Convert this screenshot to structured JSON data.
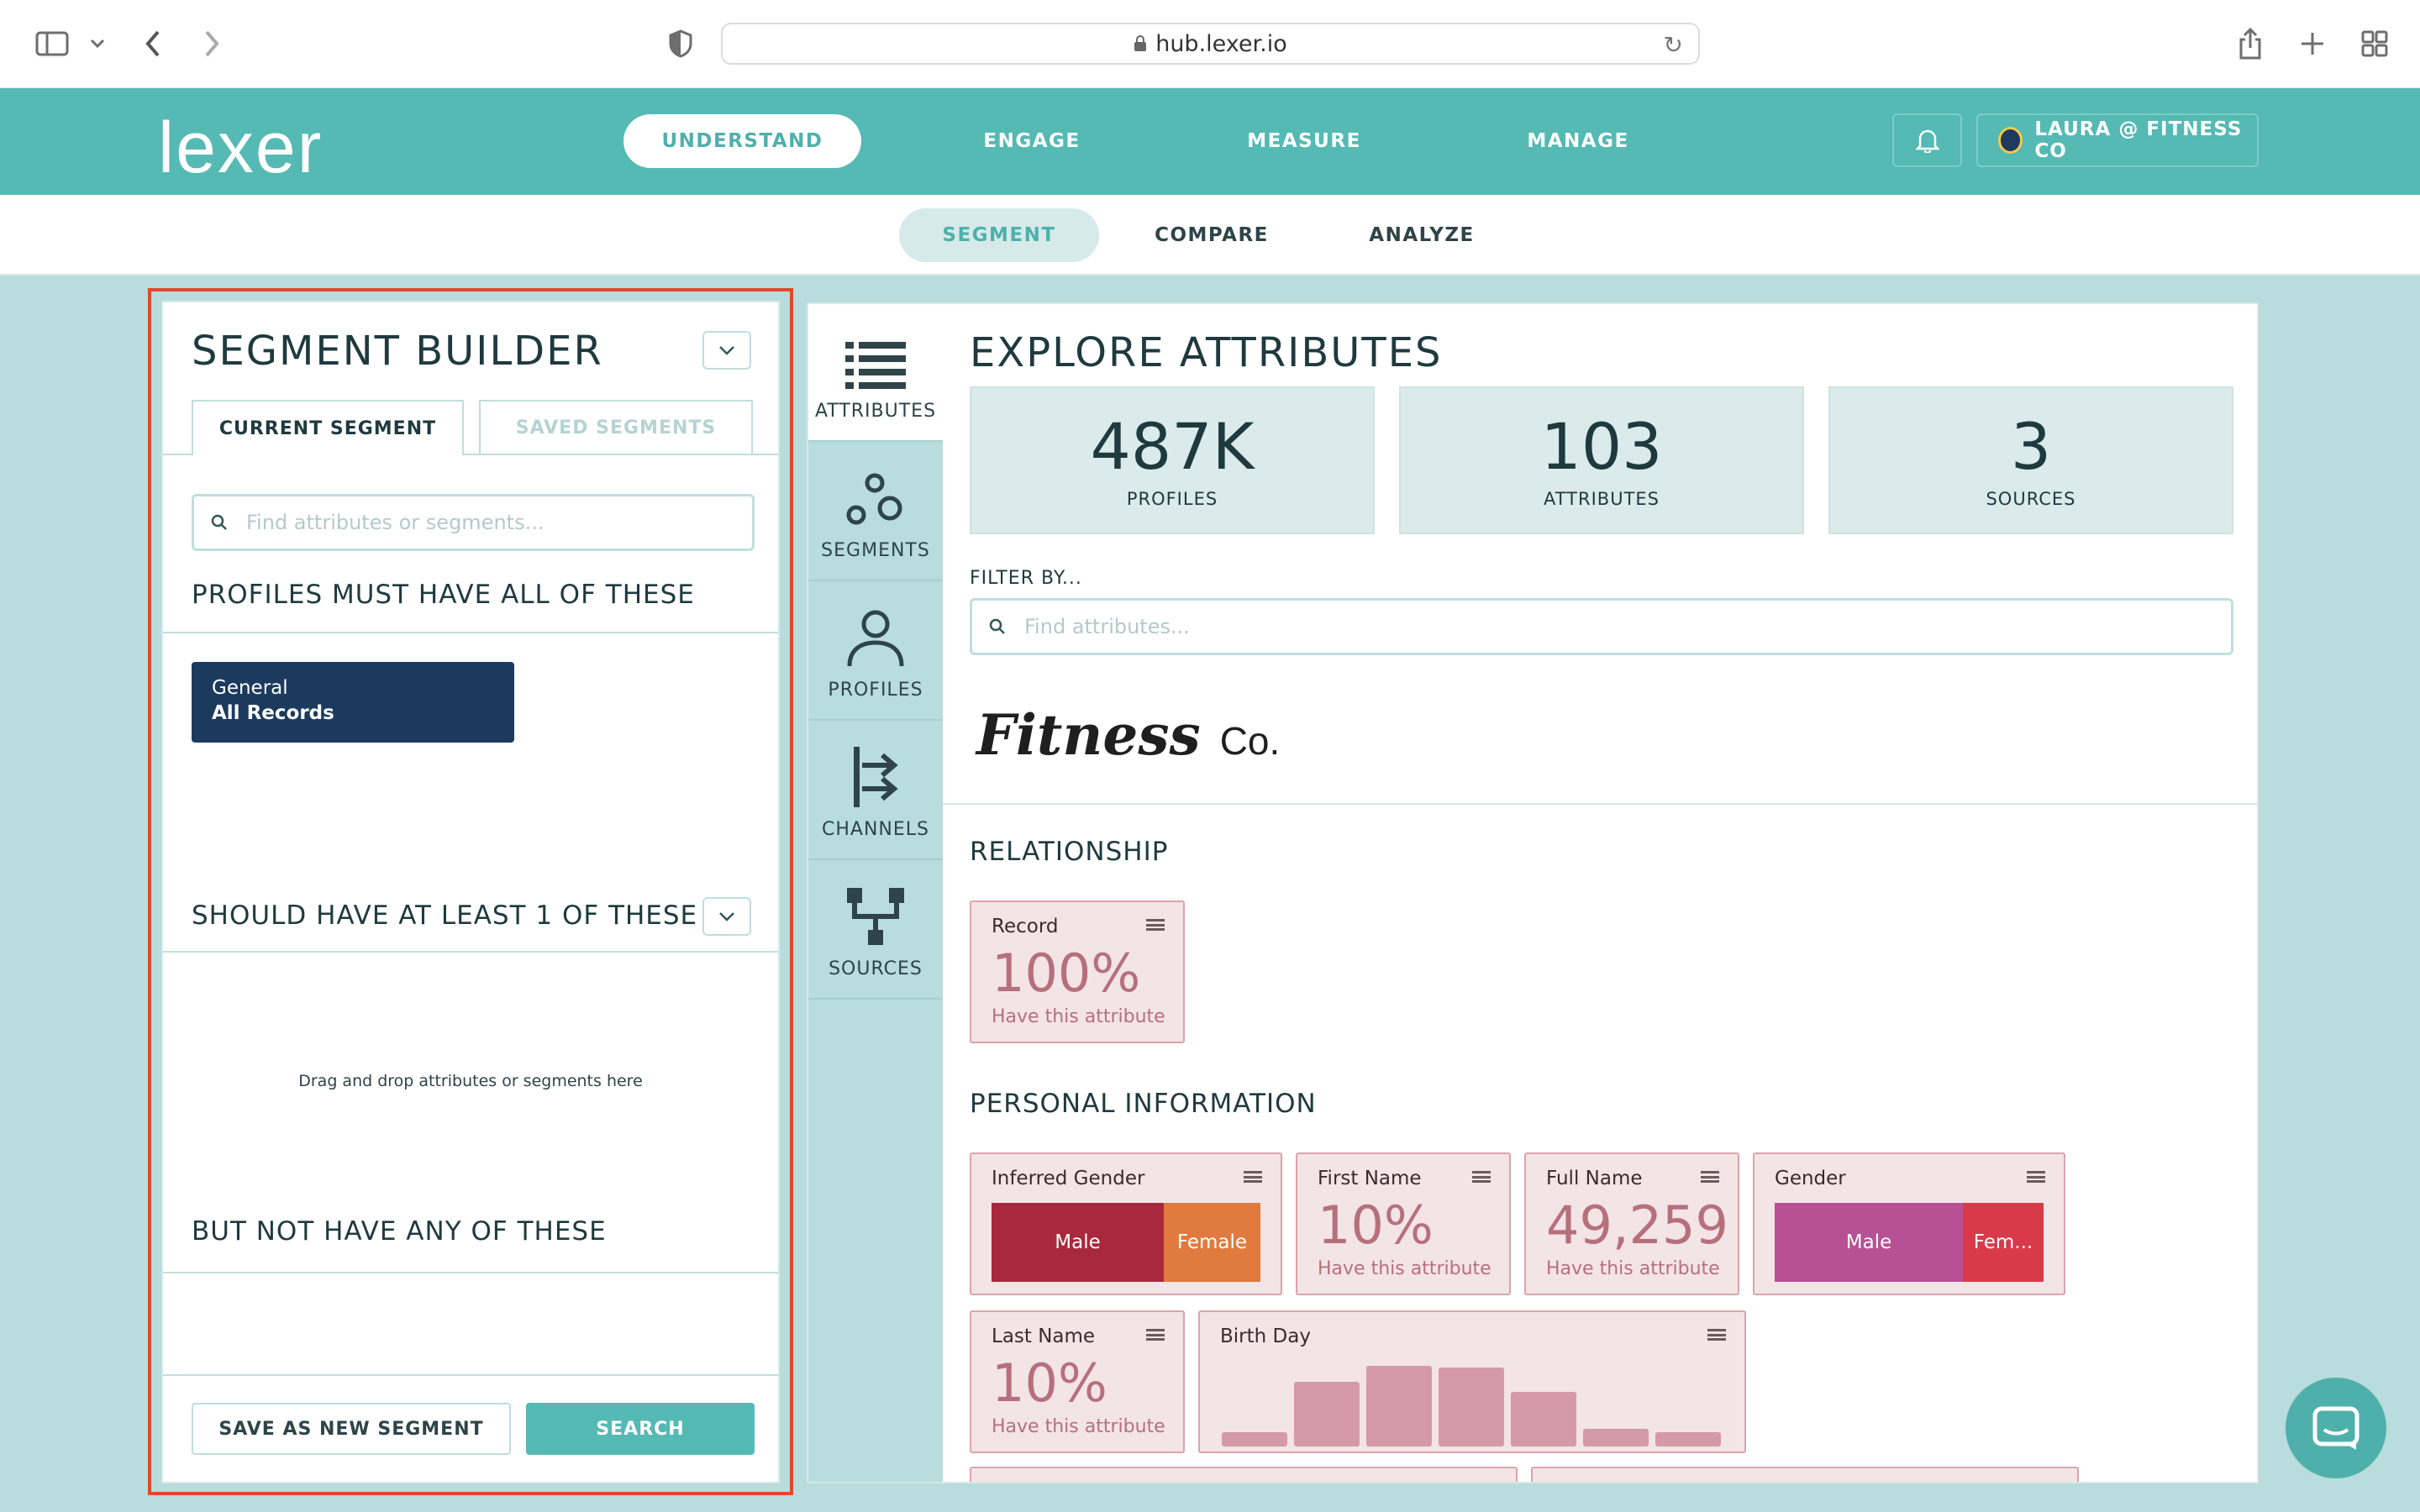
{
  "browser": {
    "url": "hub.lexer.io"
  },
  "topnav": {
    "logo": "lexer",
    "tabs": [
      {
        "label": "UNDERSTAND"
      },
      {
        "label": "ENGAGE"
      },
      {
        "label": "MEASURE"
      },
      {
        "label": "MANAGE"
      }
    ],
    "account_label": "LAURA @ FITNESS CO"
  },
  "subnav": {
    "tabs": [
      {
        "label": "SEGMENT"
      },
      {
        "label": "COMPARE"
      },
      {
        "label": "ANALYZE"
      }
    ]
  },
  "builder": {
    "title": "SEGMENT BUILDER",
    "tabs": [
      {
        "label": "CURRENT SEGMENT"
      },
      {
        "label": "SAVED SEGMENTS"
      }
    ],
    "search_placeholder": "Find attributes or segments...",
    "must_have_title": "PROFILES MUST HAVE ALL OF THESE",
    "chip": {
      "category": "General",
      "name": "All Records"
    },
    "should_have_title": "SHOULD HAVE AT LEAST 1 OF THESE",
    "drop_hint": "Drag and drop attributes or segments here",
    "not_have_title": "BUT NOT HAVE ANY OF THESE",
    "save_label": "SAVE AS NEW SEGMENT",
    "search_label": "SEARCH"
  },
  "sidebar": {
    "items": [
      {
        "label": "ATTRIBUTES",
        "icon": "list-icon"
      },
      {
        "label": "SEGMENTS",
        "icon": "circles-icon"
      },
      {
        "label": "PROFILES",
        "icon": "person-icon"
      },
      {
        "label": "CHANNELS",
        "icon": "channels-icon"
      },
      {
        "label": "SOURCES",
        "icon": "sources-icon"
      }
    ]
  },
  "explore": {
    "title": "EXPLORE ATTRIBUTES",
    "stats": [
      {
        "value": "487K",
        "label": "PROFILES"
      },
      {
        "value": "103",
        "label": "ATTRIBUTES"
      },
      {
        "value": "3",
        "label": "SOURCES"
      }
    ],
    "filter_label": "FILTER BY...",
    "filter_placeholder": "Find attributes...",
    "brand": {
      "main": "Fitness",
      "suffix": "Co."
    },
    "groups": {
      "relationship": "RELATIONSHIP",
      "personal": "PERSONAL INFORMATION"
    },
    "cards": {
      "record": {
        "name": "Record",
        "value": "100%",
        "sub": "Have this attribute"
      },
      "inferred_gender": {
        "name": "Inferred Gender",
        "segments": [
          "Male",
          "Female"
        ],
        "male_share": 0.64
      },
      "first_name": {
        "name": "First Name",
        "value": "10%",
        "sub": "Have this attribute"
      },
      "full_name": {
        "name": "Full Name",
        "value": "49,259",
        "sub": "Have this attribute"
      },
      "gender": {
        "name": "Gender",
        "segments": [
          "Male",
          "Fem..."
        ],
        "male_share": 0.7
      },
      "last_name": {
        "name": "Last Name",
        "value": "10%",
        "sub": "Have this attribute"
      },
      "birth_day": {
        "name": "Birth Day",
        "bars": [
          0.18,
          0.8,
          1.0,
          0.98,
          0.68,
          0.22,
          0.18
        ]
      }
    }
  },
  "colors": {
    "teal": "#55b9b4",
    "navy": "#1b3a5e",
    "male_red": "#a8283c",
    "female_orange": "#e07a3e",
    "gender_male": "#b85095",
    "gender_female": "#d93a4a",
    "highlight": "#e0492c"
  }
}
